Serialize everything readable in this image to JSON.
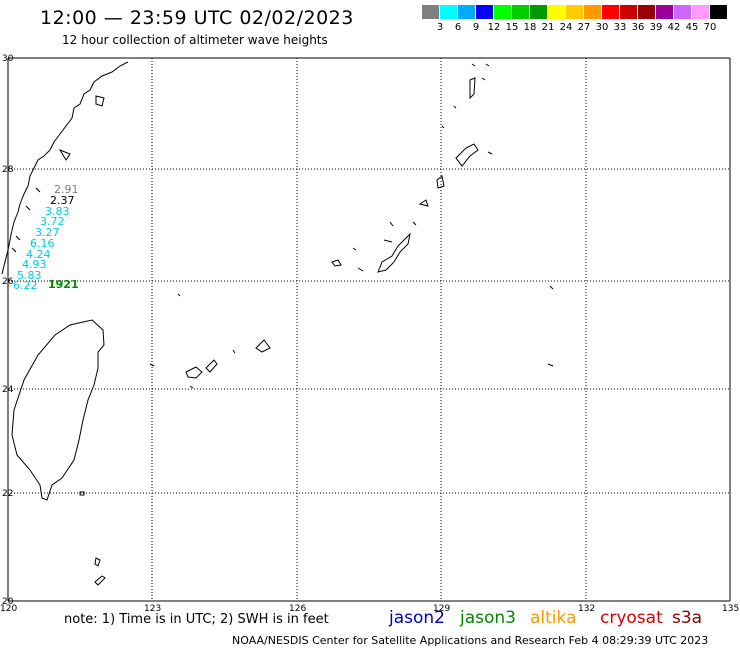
{
  "title": "12:00 — 23:59 UTC 02/02/2023",
  "subtitle": "12 hour collection of altimeter wave heights",
  "color_scale": {
    "colors": [
      "#808080",
      "#00ffff",
      "#00aaff",
      "#0000ff",
      "#00ff00",
      "#00cc00",
      "#009900",
      "#ffff00",
      "#ffcc00",
      "#ff9900",
      "#ff0000",
      "#cc0000",
      "#990000",
      "#990099",
      "#cc66ff",
      "#ff99ff",
      "#000000"
    ],
    "labels": [
      "3",
      "6",
      "9",
      "12",
      "15",
      "18",
      "21",
      "24",
      "27",
      "30",
      "33",
      "36",
      "39",
      "42",
      "45",
      "70"
    ],
    "unit": "(ft)"
  },
  "lat_labels": [
    "30",
    "28",
    "26",
    "24",
    "22",
    "20"
  ],
  "lon_labels": [
    "120",
    "123",
    "126",
    "129",
    "132",
    "135"
  ],
  "observations": [
    {
      "text": "2.91",
      "color": "#808080"
    },
    {
      "text": "2.37",
      "color": "#000000"
    },
    {
      "text": "3.83",
      "color": "#00ccdd"
    },
    {
      "text": "3.72",
      "color": "#00ccdd"
    },
    {
      "text": "3.27",
      "color": "#00ccdd"
    },
    {
      "text": "6.16",
      "color": "#00ccdd"
    },
    {
      "text": "4.24",
      "color": "#00ccdd"
    },
    {
      "text": "4.93",
      "color": "#00ccdd"
    },
    {
      "text": "5.83",
      "color": "#00ccdd"
    },
    {
      "text": "6.22",
      "color": "#00ccdd"
    }
  ],
  "track_label": {
    "text": "1921",
    "color": "#008800"
  },
  "note": "note: 1) Time is in UTC; 2) SWH is in feet",
  "satellites": [
    {
      "name": "jason2",
      "color": "#0000cc"
    },
    {
      "name": "jason3",
      "color": "#008800"
    },
    {
      "name": "altika",
      "color": "#ff9900"
    },
    {
      "name": "cryosat",
      "color": "#dd0000"
    },
    {
      "name": "s3a",
      "color": "#880000"
    }
  ],
  "footer": "NOAA/NESDIS Center for Satellite Applications and Research   Feb  4 08:29:39 UTC 2023"
}
